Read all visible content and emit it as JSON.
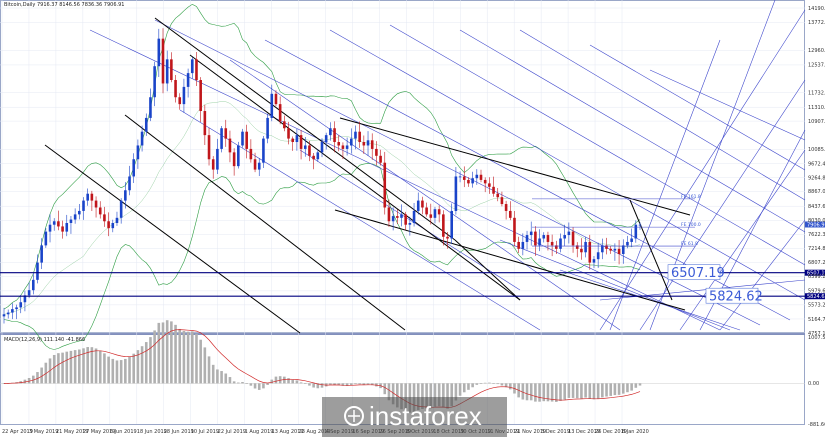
{
  "header": {
    "symbol_info": "Bitcoin,Daily  7916.37 8146.56 7836.36 7906.91"
  },
  "indicator_header": "MACD(12,26,9) 111.140 -41.866",
  "watermark": "instaforex",
  "colors": {
    "bull": "#1a44c9",
    "bear": "#c0161b",
    "bands": "#2f9e44",
    "macd_hist": "#b0b0b0",
    "macd_signal": "#d12a2a",
    "channel": "#000000",
    "fan": "#3f48cc",
    "level": "#000080",
    "frame": "#9aa7c8"
  },
  "chart_data": [
    {
      "type": "candlestick",
      "title": "",
      "y_ticks": [
        "14190.00",
        "13772.60",
        "12960.00",
        "12537.60",
        "11732.80",
        "11310.00",
        "10907.40",
        "10085.60",
        "9672.40",
        "9264.80",
        "8867.00",
        "8437.60",
        "8030.00",
        "7622.30",
        "7214.80",
        "6807.20",
        "6399.20",
        "5979.60",
        "5573.20",
        "5164.70",
        "4757.10"
      ],
      "ylim": [
        4757.1,
        14190
      ],
      "x_ticks": [
        "22 Apr 2019",
        "3 May 2019",
        "21 May 2019",
        "27 May 2019",
        "6 Jun 2019",
        "18 Jun 2019",
        "28 Jun 2019",
        "10 Jul 2019",
        "22 Jul 2019",
        "1 Aug 2019",
        "13 Aug 2019",
        "23 Aug 2019",
        "4 Sep 2019",
        "16 Sep 2019",
        "26 Sep 2019",
        "8 Oct 2019",
        "18 Oct 2019",
        "30 Oct 2019",
        "11 Nov 2019",
        "21 Nov 2019",
        "3 Dec 2019",
        "13 Dec 2019",
        "26 Dec 2019",
        "8 Jan 2020"
      ],
      "current_price_label": "7906.91",
      "horizontal_levels": [
        {
          "label": "6507.19",
          "value": 6507.19,
          "axis_label": "6507.19"
        },
        {
          "label": "5824.62",
          "value": 5824.62,
          "axis_label": "5824.62"
        }
      ],
      "fib_levels": [
        {
          "label": "FE 161.8",
          "value": 8650
        },
        {
          "label": "FE 100.0",
          "value": 7830
        },
        {
          "label": "FE 61.8",
          "value": 7280
        }
      ],
      "close": [
        5300,
        5350,
        5450,
        5500,
        5650,
        5850,
        6000,
        6300,
        6800,
        7300,
        7700,
        7900,
        8000,
        7850,
        7700,
        7950,
        8050,
        8200,
        8300,
        8600,
        8800,
        8600,
        8400,
        8200,
        8000,
        7800,
        7950,
        8100,
        8600,
        8900,
        9300,
        9800,
        10200,
        10600,
        11000,
        11600,
        12500,
        13300,
        12000,
        12700,
        12100,
        11600,
        11400,
        11900,
        12300,
        12700,
        12100,
        11200,
        10500,
        9800,
        9500,
        10100,
        10700,
        10400,
        10000,
        9600,
        10200,
        10600,
        10100,
        9800,
        9500,
        9700,
        10400,
        11000,
        11700,
        11400,
        10900,
        10700,
        10400,
        10300,
        10500,
        10100,
        10200,
        9900,
        9800,
        10000,
        10300,
        10500,
        10700,
        10300,
        10200,
        10100,
        10200,
        10400,
        10600,
        10300,
        10200,
        10350,
        10100,
        9900,
        9700,
        8400,
        8000,
        8150,
        8100,
        8200,
        7900,
        7950,
        8300,
        8600,
        8400,
        8200,
        8100,
        8350,
        8200,
        7550,
        7500,
        8300,
        9300,
        9300,
        9200,
        9100,
        9250,
        9350,
        9200,
        9100,
        9000,
        8800,
        8700,
        8500,
        8300,
        8100,
        7400,
        7200,
        7400,
        7600,
        7700,
        7300,
        7500,
        7600,
        7400,
        7300,
        7200,
        7500,
        7600,
        7700,
        7300,
        7200,
        7100,
        7400,
        6800,
        6900,
        7100,
        7300,
        7200,
        7150,
        7200,
        7050,
        7300,
        7400,
        7500,
        7900,
        7900
      ]
    },
    {
      "type": "bar",
      "title": "",
      "name": "MACD",
      "y_ticks": [
        "1007.557",
        "0.00",
        "-881.665"
      ],
      "ylim": [
        -881.665,
        1007.557
      ]
    }
  ]
}
